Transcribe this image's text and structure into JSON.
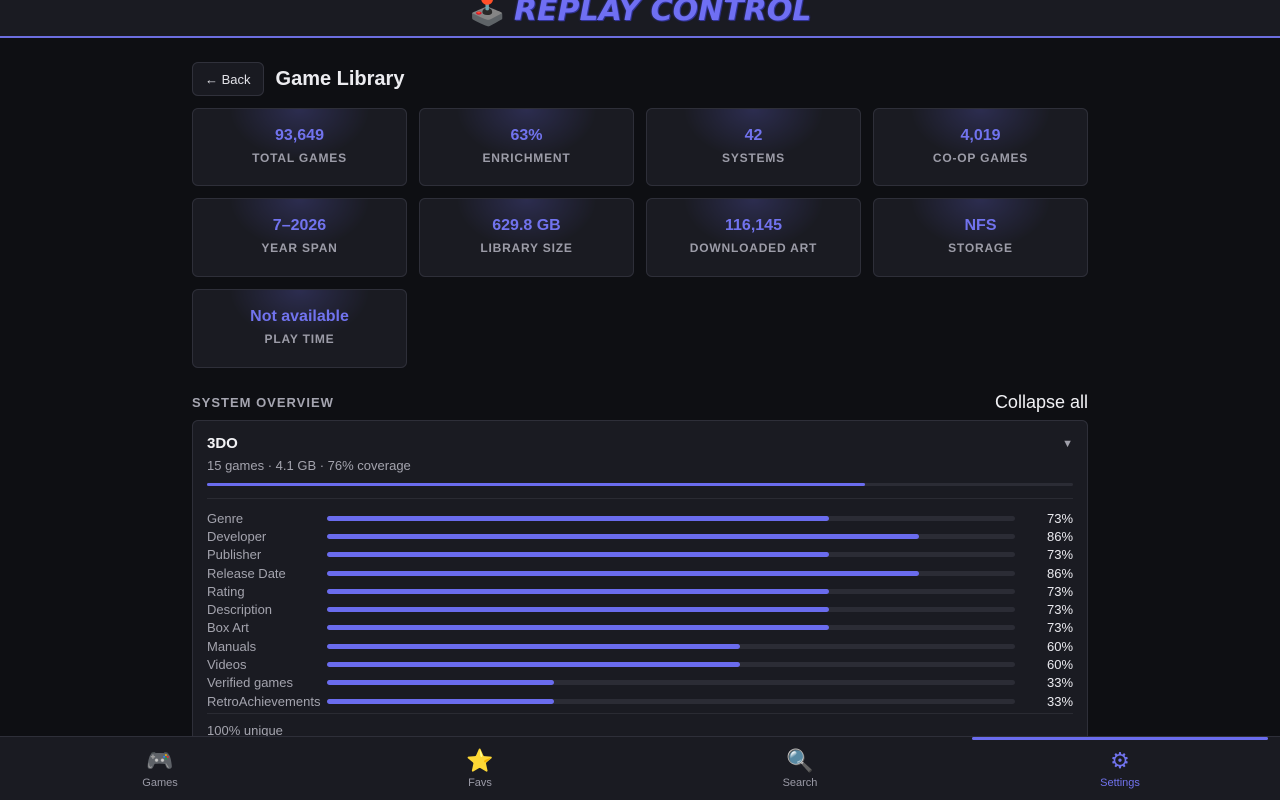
{
  "header": {
    "logo_icon": "joystick-pc-icon",
    "logo_text": "REPLAY CONTROL",
    "accent": "#6c6ee0"
  },
  "title_row": {
    "back_label": "← Back",
    "page_title": "Game Library"
  },
  "stats": [
    {
      "value": "93,649",
      "label": "TOTAL GAMES"
    },
    {
      "value": "63%",
      "label": "ENRICHMENT"
    },
    {
      "value": "42",
      "label": "SYSTEMS"
    },
    {
      "value": "4,019",
      "label": "CO-OP GAMES"
    },
    {
      "value": "7–2026",
      "label": "YEAR SPAN"
    },
    {
      "value": "629.8 GB",
      "label": "LIBRARY SIZE"
    },
    {
      "value": "116,145",
      "label": "DOWNLOADED ART"
    },
    {
      "value": "NFS",
      "label": "STORAGE"
    },
    {
      "value": "Not available",
      "label": "PLAY TIME"
    }
  ],
  "system_overview": {
    "title": "SYSTEM OVERVIEW",
    "collapse_label": "Collapse all",
    "systems": [
      {
        "name": "3DO",
        "summary": "15 games · 4.1 GB · 76% coverage",
        "coverage": 0.76,
        "chevron_icon": "chevron-down-icon",
        "metrics": [
          {
            "label": "Genre",
            "pct_text": "73%",
            "value": 0.73
          },
          {
            "label": "Developer",
            "pct_text": "86%",
            "value": 0.86
          },
          {
            "label": "Publisher",
            "pct_text": "73%",
            "value": 0.73
          },
          {
            "label": "Release Date",
            "pct_text": "86%",
            "value": 0.86
          },
          {
            "label": "Rating",
            "pct_text": "73%",
            "value": 0.73
          },
          {
            "label": "Description",
            "pct_text": "73%",
            "value": 0.73
          },
          {
            "label": "Box Art",
            "pct_text": "73%",
            "value": 0.73
          },
          {
            "label": "Manuals",
            "pct_text": "60%",
            "value": 0.6
          },
          {
            "label": "Videos",
            "pct_text": "60%",
            "value": 0.6
          },
          {
            "label": "Verified games",
            "pct_text": "33%",
            "value": 0.33
          },
          {
            "label": "RetroAchievements",
            "pct_text": "33%",
            "value": 0.33
          }
        ],
        "unique_text": "100% unique"
      }
    ]
  },
  "bottom_nav": {
    "items": [
      {
        "label": "Games",
        "icon": "🎮",
        "icon_name": "gamepad-icon"
      },
      {
        "label": "Favs",
        "icon": "⭐",
        "icon_name": "star-icon"
      },
      {
        "label": "Search",
        "icon": "🔍",
        "icon_name": "search-icon"
      },
      {
        "label": "Settings",
        "icon": "⚙",
        "icon_name": "gear-icon"
      }
    ],
    "active": "Settings"
  }
}
